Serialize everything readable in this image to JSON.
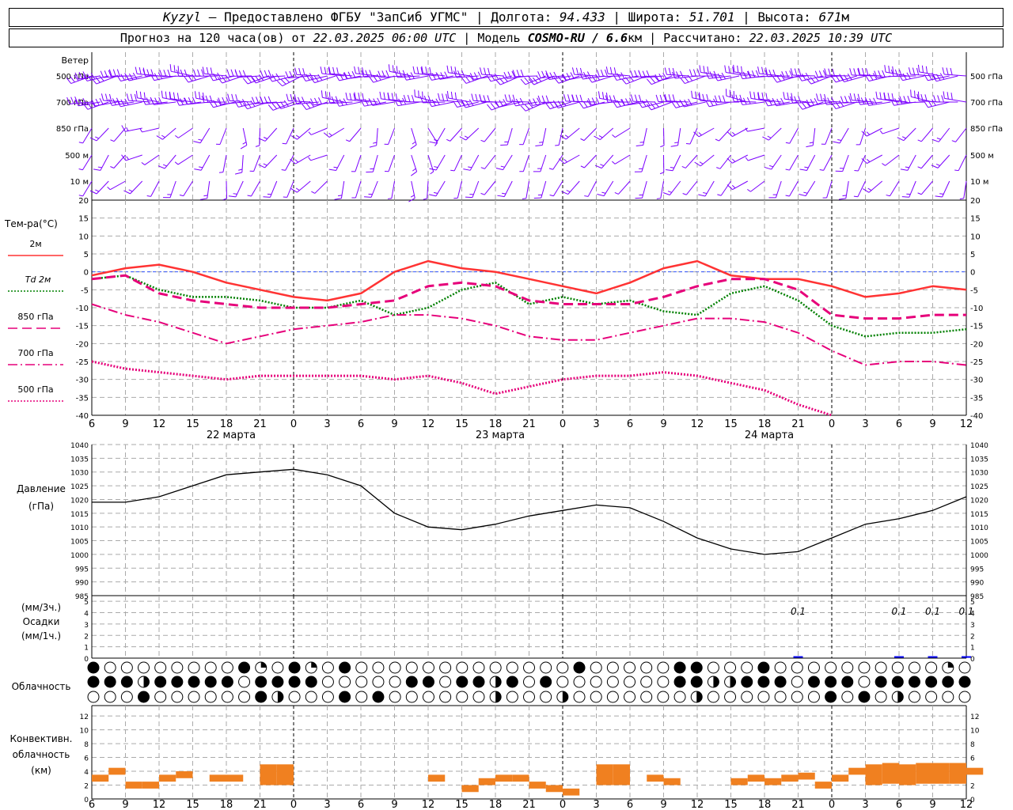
{
  "header": {
    "station": "Kyzyl",
    "provided_by": " – Предоставлено ФГБУ \"ЗапСиб УГМС\" | Долгота: ",
    "lon": "94.433",
    "lat_label": " | Широта: ",
    "lat": "51.701",
    "alt_label": " | Высота: ",
    "alt": "671",
    "alt_unit": "м",
    "forecast_label": "Прогноз на 120 часа(ов) от ",
    "forecast_from": "22.03.2025 06:00 UTC",
    "model_label": " | Модель ",
    "model": "COSMO-RU / 6.6",
    "model_unit": "км",
    "calc_label": " | Рассчитано: ",
    "calc_time": "22.03.2025 10:39 UTC"
  },
  "wind_panel": {
    "title": "Ветер",
    "levels": [
      "500 гПа",
      "700 гПа",
      "850 гПа",
      "500 м",
      "10  м"
    ],
    "right_levels": [
      "500 гПа",
      "700 гПа",
      "850 гПа",
      "500 м",
      "10  м"
    ],
    "barb_color": "#7b00ff"
  },
  "temp_panel": {
    "title": "Тем-ра(°С)",
    "legend": [
      {
        "label": "2м",
        "color": "#ff3333",
        "style": "solid"
      },
      {
        "label": "Td 2м",
        "color": "#008000",
        "style": "dotted"
      },
      {
        "label": "850 гПа",
        "color": "#e6007a",
        "style": "dash"
      },
      {
        "label": "700 гПа",
        "color": "#e6007a",
        "style": "dashdot"
      },
      {
        "label": "500 гПа",
        "color": "#e6007a",
        "style": "dotted"
      }
    ]
  },
  "x_ticks": [
    "6",
    "9",
    "12",
    "15",
    "18",
    "21",
    "0",
    "3",
    "6",
    "9",
    "12",
    "15",
    "18",
    "21",
    "0",
    "3",
    "6",
    "9",
    "12",
    "15",
    "18",
    "21",
    "0",
    "3",
    "6",
    "9",
    "12"
  ],
  "day_labels": [
    "22 марта",
    "23 марта",
    "24 марта"
  ],
  "pressure_panel": {
    "title": "Давление",
    "unit": "(гПа)"
  },
  "precip_panel": {
    "label1": "(мм/3ч.)",
    "label2": "Осадки",
    "label3": "(мм/1ч.)",
    "annotations": [
      "0.1",
      "0.1",
      "0.1",
      "0.1"
    ],
    "annotation_hours": [
      63,
      72,
      75,
      78
    ],
    "bar_color": "#0000ff"
  },
  "cloud_panel": {
    "title": "Облачность"
  },
  "conv_panel": {
    "title1": "Конвективн.",
    "title2": "облачность",
    "title3": "(км)",
    "bar_color": "#f08020"
  },
  "chart_data": [
    {
      "type": "line",
      "title": "Тем-ра(°С)",
      "ylim": [
        -40,
        20
      ],
      "x_hours_from_start": [
        0,
        3,
        6,
        9,
        12,
        15,
        18,
        21,
        24,
        27,
        30,
        33,
        36,
        39,
        42,
        45,
        48,
        51,
        54,
        57,
        60,
        63,
        66,
        69,
        72,
        75,
        78
      ],
      "series": [
        {
          "name": "2м",
          "values": [
            -1,
            1,
            2,
            0,
            -3,
            -5,
            -7,
            -8,
            -6,
            0,
            3,
            1,
            0,
            -2,
            -4,
            -6,
            -3,
            1,
            3,
            -1,
            -2,
            -2,
            -4,
            -7,
            -6,
            -4,
            -5
          ]
        },
        {
          "name": "Td 2м",
          "values": [
            -2,
            -1,
            -5,
            -7,
            -7,
            -8,
            -10,
            -10,
            -8,
            -12,
            -10,
            -5,
            -3,
            -9,
            -7,
            -9,
            -8,
            -11,
            -12,
            -6,
            -4,
            -8,
            -15,
            -18,
            -17,
            -17,
            -16
          ]
        },
        {
          "name": "850 гПа",
          "values": [
            -2,
            -1,
            -6,
            -8,
            -9,
            -10,
            -10,
            -10,
            -9,
            -8,
            -4,
            -3,
            -4,
            -8,
            -9,
            -9,
            -9,
            -7,
            -4,
            -2,
            -2,
            -5,
            -12,
            -13,
            -13,
            -12,
            -12
          ]
        },
        {
          "name": "700 гПа",
          "values": [
            -9,
            -12,
            -14,
            -17,
            -20,
            -18,
            -16,
            -15,
            -14,
            -12,
            -12,
            -13,
            -15,
            -18,
            -19,
            -19,
            -17,
            -15,
            -13,
            -13,
            -14,
            -17,
            -22,
            -26,
            -25,
            -25,
            -26
          ]
        },
        {
          "name": "500 гПа",
          "values": [
            -25,
            -27,
            -28,
            -29,
            -30,
            -29,
            -29,
            -29,
            -29,
            -30,
            -29,
            -31,
            -34,
            -32,
            -30,
            -29,
            -29,
            -28,
            -29,
            -31,
            -33,
            -37,
            -40,
            null,
            null,
            null,
            null
          ]
        }
      ]
    },
    {
      "type": "line",
      "title": "Давление",
      "ylim": [
        985,
        1040
      ],
      "x_hours_from_start": [
        0,
        3,
        6,
        9,
        12,
        15,
        18,
        21,
        24,
        27,
        30,
        33,
        36,
        39,
        42,
        45,
        48,
        51,
        54,
        57,
        60,
        63,
        66,
        69,
        72,
        75,
        78
      ],
      "series": [
        {
          "name": "Давление",
          "values": [
            1019,
            1019,
            1021,
            1025,
            1029,
            1030,
            1031,
            1029,
            1025,
            1015,
            1010,
            1009,
            1011,
            1014,
            1016,
            1018,
            1017,
            1012,
            1006,
            1002,
            1000,
            1001,
            1006,
            1011,
            1013,
            1016,
            1021
          ]
        }
      ]
    },
    {
      "type": "bar",
      "title": "Конвективн. облачность (км)",
      "ylim": [
        0,
        13
      ],
      "x_hours_from_start": [
        0,
        1.5,
        3,
        4.5,
        6,
        7.5,
        10.5,
        12,
        15,
        16.5,
        30,
        33,
        34.5,
        36,
        37.5,
        39,
        40.5,
        42,
        45,
        46.5,
        49.5,
        51,
        57,
        58.5,
        60,
        61.5,
        63,
        64.5,
        66,
        67.5,
        69,
        70.5,
        72,
        73.5,
        75,
        76.5,
        78
      ],
      "values": [
        3.5,
        4.5,
        2.5,
        2.5,
        3.5,
        4,
        3.5,
        3.5,
        5,
        5,
        3.5,
        2,
        3,
        3.5,
        3.5,
        2.5,
        2,
        1.5,
        5,
        5,
        3.5,
        3,
        3,
        3.5,
        3,
        3.5,
        3.8,
        2.5,
        3.5,
        4.5,
        5,
        5.2,
        5,
        5.2,
        5.2,
        5.2,
        4.5
      ]
    },
    {
      "type": "bar",
      "title": "Осадки",
      "ylim": [
        0,
        5
      ],
      "x_hours_from_start": [
        63,
        72,
        75,
        78
      ],
      "values": [
        0.1,
        0.1,
        0.1,
        0.1
      ]
    }
  ]
}
